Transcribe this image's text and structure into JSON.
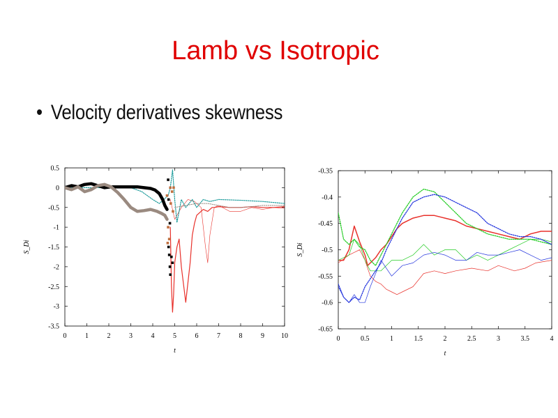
{
  "slide": {
    "title": "Lamb vs Isotropic",
    "bullet": "Velocity derivatives skewness"
  },
  "colors": {
    "title": "#e00000",
    "red": "#e8302a",
    "green": "#22cc22",
    "blue": "#2233dd",
    "teal": "#1a9a9a",
    "black": "#000000",
    "gray": "#9a8a80",
    "brown": "#c07040"
  },
  "chart_data": [
    {
      "type": "line",
      "xlabel": "t",
      "ylabel": "S_Di",
      "xlim": [
        0,
        10
      ],
      "ylim": [
        -3.5,
        0.5
      ],
      "xticks": [
        "0",
        "1",
        "2",
        "3",
        "4",
        "5",
        "6",
        "7",
        "8",
        "9",
        "10"
      ],
      "yticks": [
        "0.5",
        "0",
        "-0.5",
        "-1",
        "-1.5",
        "-2",
        "-2.5",
        "-3",
        "-3.5"
      ],
      "grid": false,
      "series": [
        {
          "color": "#e8302a",
          "style": "solid",
          "width": 1.2,
          "x": [
            4.8,
            4.85,
            4.9,
            4.95,
            5.0,
            5.1,
            5.2,
            5.3,
            5.5,
            5.7,
            5.8,
            5.9,
            6.0,
            6.3,
            6.5,
            6.7,
            6.8,
            7.0,
            7.5,
            8,
            8.5,
            9,
            9.5,
            10
          ],
          "y": [
            -1.0,
            -2.5,
            -3.15,
            -2.7,
            -1.9,
            -1.5,
            -1.3,
            -2.0,
            -2.9,
            -1.9,
            -1.2,
            -0.9,
            -0.7,
            -0.55,
            -0.6,
            -0.5,
            -0.5,
            -0.48,
            -0.5,
            -0.5,
            -0.48,
            -0.5,
            -0.5,
            -0.48
          ]
        },
        {
          "color": "#e8302a",
          "style": "thin",
          "width": 0.6,
          "x": [
            4.8,
            5.0,
            5.3,
            5.6,
            5.9,
            6.2,
            6.4,
            6.5,
            6.6,
            6.8,
            7.0,
            7.5,
            8,
            8.5,
            9,
            9.5,
            10
          ],
          "y": [
            -0.3,
            -0.8,
            -0.5,
            -0.3,
            -0.35,
            -0.5,
            -1.5,
            -1.9,
            -1.2,
            -0.5,
            -0.45,
            -0.6,
            -0.6,
            -0.5,
            -0.55,
            -0.5,
            -0.52
          ]
        },
        {
          "color": "#1a9a9a",
          "style": "dotted",
          "width": 1.2,
          "x": [
            0,
            0.5,
            1,
            2,
            3,
            3.5,
            4.0,
            4.3,
            4.5,
            4.7,
            4.8,
            4.9,
            5.0,
            5.1,
            5.2,
            5.3,
            5.5,
            5.8,
            6.0,
            6.3,
            6.6,
            7.0,
            8,
            9,
            10
          ],
          "y": [
            0,
            0,
            0,
            0,
            0,
            -0.1,
            -0.3,
            -0.4,
            -0.3,
            -0.2,
            0.0,
            0.45,
            -0.3,
            -0.88,
            -0.6,
            -0.3,
            -0.5,
            -0.3,
            -0.5,
            -0.3,
            -0.35,
            -0.3,
            -0.32,
            -0.35,
            -0.4
          ]
        },
        {
          "color": "#9a8a80",
          "style": "dotted",
          "width": 1.0,
          "x": [
            5.0,
            5.5,
            6,
            6.5,
            7,
            7.5,
            8,
            8.5,
            9,
            9.5,
            10
          ],
          "y": [
            -0.5,
            -0.45,
            -0.4,
            -0.4,
            -0.45,
            -0.5,
            -0.5,
            -0.48,
            -0.45,
            -0.45,
            -0.45
          ]
        },
        {
          "color": "#000000",
          "style": "thick",
          "width": 4.5,
          "x": [
            0,
            0.3,
            0.6,
            0.9,
            1.2,
            1.5,
            1.8,
            2.1,
            2.4,
            2.7,
            3.0,
            3.3,
            3.6,
            3.9,
            4.1,
            4.3,
            4.45,
            4.55,
            4.65
          ],
          "y": [
            0.0,
            0.05,
            0.02,
            0.08,
            0.1,
            0.05,
            0.0,
            0.02,
            0.02,
            0.02,
            0.02,
            0.02,
            0.0,
            -0.02,
            -0.06,
            -0.15,
            -0.3,
            -0.45,
            -0.55
          ]
        },
        {
          "color": "#9a8a80",
          "style": "thick",
          "width": 4.5,
          "x": [
            0,
            0.3,
            0.6,
            0.9,
            1.2,
            1.5,
            1.8,
            2.1,
            2.4,
            2.7,
            3.0,
            3.3,
            3.6,
            3.9,
            4.2,
            4.4,
            4.55,
            4.65
          ],
          "y": [
            0.0,
            -0.05,
            0.02,
            -0.1,
            -0.05,
            0.05,
            0.08,
            0.02,
            -0.12,
            -0.3,
            -0.5,
            -0.6,
            -0.58,
            -0.55,
            -0.6,
            -0.65,
            -0.7,
            -0.8
          ]
        }
      ],
      "scatter": [
        {
          "color": "#000000",
          "x": [
            4.7,
            4.72,
            4.75,
            4.78,
            4.8,
            4.85,
            4.9,
            4.72,
            4.78
          ],
          "y": [
            0.2,
            -1.5,
            -1.7,
            -2.0,
            -2.2,
            -1.75,
            -1.9,
            -0.3,
            -0.9
          ]
        },
        {
          "color": "#c07040",
          "x": [
            4.65,
            4.7,
            4.75,
            4.8,
            4.82,
            4.88,
            4.92,
            4.68,
            4.95
          ],
          "y": [
            -0.2,
            -1.0,
            -1.3,
            0.0,
            -0.4,
            -0.1,
            -0.6,
            -1.4,
            0.0
          ]
        }
      ]
    },
    {
      "type": "line",
      "xlabel": "t",
      "ylabel": "S_Di",
      "xlim": [
        0,
        4
      ],
      "ylim": [
        -0.65,
        -0.35
      ],
      "xticks": [
        "0",
        "0.5",
        "1",
        "1.5",
        "2",
        "2.5",
        "3",
        "3.5",
        "4"
      ],
      "yticks": [
        "-0.35",
        "-0.4",
        "-0.45",
        "-0.5",
        "-0.55",
        "-0.6",
        "-0.65"
      ],
      "grid": false,
      "series": [
        {
          "color": "#e8302a",
          "style": "solid",
          "width": 1.5,
          "x": [
            0,
            0.1,
            0.2,
            0.3,
            0.4,
            0.5,
            0.55,
            0.6,
            0.7,
            0.8,
            0.9,
            1.0,
            1.1,
            1.2,
            1.4,
            1.6,
            1.8,
            2.0,
            2.2,
            2.4,
            2.6,
            2.8,
            3.0,
            3.2,
            3.4,
            3.6,
            3.8,
            4.0
          ],
          "y": [
            -0.52,
            -0.52,
            -0.5,
            -0.455,
            -0.485,
            -0.51,
            -0.53,
            -0.525,
            -0.515,
            -0.5,
            -0.49,
            -0.475,
            -0.46,
            -0.45,
            -0.44,
            -0.435,
            -0.435,
            -0.44,
            -0.445,
            -0.455,
            -0.46,
            -0.465,
            -0.47,
            -0.475,
            -0.48,
            -0.47,
            -0.465,
            -0.465
          ]
        },
        {
          "color": "#e8302a",
          "style": "thin",
          "width": 0.7,
          "x": [
            0,
            0.2,
            0.4,
            0.5,
            0.6,
            0.7,
            0.8,
            0.9,
            1.0,
            1.1,
            1.2,
            1.4,
            1.6,
            1.8,
            2.0,
            2.2,
            2.5,
            2.8,
            3.0,
            3.3,
            3.5,
            3.7,
            4.0
          ],
          "y": [
            -0.525,
            -0.51,
            -0.5,
            -0.52,
            -0.55,
            -0.56,
            -0.565,
            -0.575,
            -0.58,
            -0.585,
            -0.58,
            -0.57,
            -0.545,
            -0.54,
            -0.545,
            -0.54,
            -0.535,
            -0.54,
            -0.53,
            -0.54,
            -0.535,
            -0.525,
            -0.52
          ]
        },
        {
          "color": "#22cc22",
          "style": "dotted",
          "width": 1.3,
          "x": [
            0,
            0.1,
            0.2,
            0.3,
            0.4,
            0.5,
            0.6,
            0.7,
            0.8,
            0.9,
            1.0,
            1.1,
            1.2,
            1.4,
            1.6,
            1.8,
            2.0,
            2.2,
            2.4,
            2.6,
            2.8,
            3.0,
            3.2,
            3.4,
            3.6,
            3.8,
            4.0
          ],
          "y": [
            -0.43,
            -0.48,
            -0.49,
            -0.48,
            -0.495,
            -0.5,
            -0.52,
            -0.53,
            -0.51,
            -0.49,
            -0.47,
            -0.45,
            -0.43,
            -0.4,
            -0.385,
            -0.39,
            -0.41,
            -0.43,
            -0.45,
            -0.46,
            -0.47,
            -0.475,
            -0.48,
            -0.48,
            -0.48,
            -0.485,
            -0.49
          ]
        },
        {
          "color": "#22cc22",
          "style": "thin",
          "width": 0.7,
          "x": [
            0,
            0.2,
            0.3,
            0.4,
            0.5,
            0.6,
            0.8,
            1.0,
            1.2,
            1.4,
            1.6,
            1.8,
            2.0,
            2.2,
            2.4,
            2.6,
            2.8,
            3.0,
            3.2,
            3.4,
            3.6,
            3.8,
            4.0
          ],
          "y": [
            -0.52,
            -0.51,
            -0.48,
            -0.49,
            -0.52,
            -0.54,
            -0.54,
            -0.52,
            -0.52,
            -0.51,
            -0.49,
            -0.51,
            -0.5,
            -0.5,
            -0.52,
            -0.51,
            -0.52,
            -0.51,
            -0.5,
            -0.49,
            -0.48,
            -0.48,
            -0.485
          ]
        },
        {
          "color": "#2233dd",
          "style": "dotted",
          "width": 1.3,
          "x": [
            0,
            0.1,
            0.2,
            0.3,
            0.4,
            0.5,
            0.6,
            0.7,
            0.8,
            0.9,
            1.0,
            1.1,
            1.2,
            1.4,
            1.6,
            1.8,
            2.0,
            2.2,
            2.4,
            2.6,
            2.8,
            3.0,
            3.2,
            3.4,
            3.6,
            3.8,
            4.0
          ],
          "y": [
            -0.565,
            -0.59,
            -0.6,
            -0.59,
            -0.595,
            -0.57,
            -0.555,
            -0.54,
            -0.525,
            -0.5,
            -0.48,
            -0.46,
            -0.44,
            -0.41,
            -0.4,
            -0.395,
            -0.4,
            -0.41,
            -0.42,
            -0.43,
            -0.45,
            -0.46,
            -0.47,
            -0.475,
            -0.475,
            -0.48,
            -0.49
          ]
        },
        {
          "color": "#2233dd",
          "style": "thin",
          "width": 0.7,
          "x": [
            0,
            0.1,
            0.2,
            0.3,
            0.4,
            0.5,
            0.6,
            0.8,
            1.0,
            1.2,
            1.4,
            1.6,
            1.8,
            2.0,
            2.2,
            2.4,
            2.6,
            2.8,
            3.0,
            3.2,
            3.4,
            3.6,
            3.8,
            4.0
          ],
          "y": [
            -0.57,
            -0.59,
            -0.6,
            -0.585,
            -0.6,
            -0.6,
            -0.57,
            -0.52,
            -0.55,
            -0.53,
            -0.525,
            -0.51,
            -0.505,
            -0.51,
            -0.52,
            -0.52,
            -0.505,
            -0.51,
            -0.51,
            -0.505,
            -0.5,
            -0.51,
            -0.52,
            -0.515
          ]
        }
      ]
    }
  ]
}
